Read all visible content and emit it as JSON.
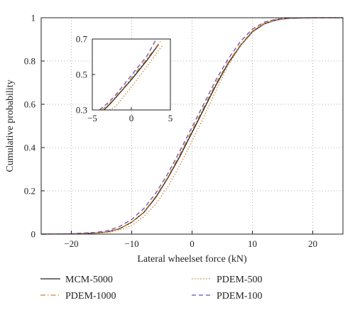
{
  "chart_data": {
    "type": "line",
    "title": "",
    "xlabel": "Lateral wheelset force (kN)",
    "ylabel": "Cumulative probability",
    "xlim": [
      -25,
      25
    ],
    "ylim": [
      0,
      1
    ],
    "xticks": [
      -20,
      -10,
      0,
      10,
      20
    ],
    "yticks": [
      0,
      0.2,
      0.4,
      0.6,
      0.8,
      1
    ],
    "xtick_labels": [
      "−20",
      "−10",
      "0",
      "10",
      "20"
    ],
    "ytick_labels": [
      "0",
      "0.2",
      "0.4",
      "0.6",
      "0.8",
      "1"
    ],
    "grid": true,
    "legend_position": "bottom",
    "series": [
      {
        "name": "MCM-5000",
        "color": "#222222",
        "dash": "solid",
        "x": [
          -25,
          -20,
          -16,
          -14,
          -12,
          -10,
          -8,
          -6,
          -4,
          -2,
          0,
          2,
          4,
          6,
          8,
          10,
          12,
          14,
          16,
          20,
          25
        ],
        "y": [
          0,
          0.001,
          0.005,
          0.01,
          0.025,
          0.055,
          0.1,
          0.17,
          0.26,
          0.36,
          0.47,
          0.58,
          0.69,
          0.79,
          0.87,
          0.935,
          0.972,
          0.99,
          0.997,
          1.0,
          1.0
        ]
      },
      {
        "name": "PDEM-500",
        "color": "#d9822b",
        "dash": "dotted",
        "x": [
          -25,
          -20,
          -16,
          -14,
          -12,
          -10,
          -8,
          -6,
          -4,
          -2,
          0,
          2,
          4,
          6,
          8,
          10,
          12,
          14,
          16,
          20,
          25
        ],
        "y": [
          0,
          0.001,
          0.004,
          0.008,
          0.018,
          0.04,
          0.08,
          0.14,
          0.22,
          0.32,
          0.43,
          0.545,
          0.665,
          0.78,
          0.87,
          0.94,
          0.978,
          0.994,
          0.999,
          1.0,
          1.0
        ]
      },
      {
        "name": "PDEM-1000",
        "color": "#d9822b",
        "dash": "dashdot",
        "x": [
          -25,
          -20,
          -16,
          -14,
          -12,
          -10,
          -8,
          -6,
          -4,
          -2,
          0,
          2,
          4,
          6,
          8,
          10,
          12,
          14,
          16,
          20,
          25
        ],
        "y": [
          0,
          0.001,
          0.005,
          0.011,
          0.026,
          0.056,
          0.102,
          0.175,
          0.265,
          0.37,
          0.48,
          0.59,
          0.7,
          0.795,
          0.875,
          0.938,
          0.974,
          0.99,
          0.997,
          1.0,
          1.0
        ]
      },
      {
        "name": "PDEM-100",
        "color": "#6b4fb3",
        "dash": "dashed",
        "x": [
          -25,
          -20,
          -16,
          -14,
          -12,
          -10,
          -8,
          -6,
          -4,
          -2,
          0,
          2,
          4,
          6,
          8,
          10,
          12,
          14,
          16,
          20,
          25
        ],
        "y": [
          0,
          0.002,
          0.008,
          0.016,
          0.035,
          0.068,
          0.118,
          0.19,
          0.28,
          0.385,
          0.495,
          0.605,
          0.715,
          0.81,
          0.89,
          0.948,
          0.98,
          0.993,
          0.998,
          1.0,
          1.0
        ]
      }
    ],
    "inset": {
      "xlim": [
        -5,
        5
      ],
      "ylim": [
        0.3,
        0.7
      ],
      "xticks": [
        -5,
        0,
        5
      ],
      "yticks": [
        0.3,
        0.5,
        0.7
      ],
      "xtick_labels": [
        "−5",
        "0",
        "5"
      ],
      "ytick_labels": [
        "0.3",
        "0.5",
        "0.7"
      ],
      "series": [
        {
          "name": "MCM-5000",
          "x": [
            -3.5,
            -2.5,
            -1,
            0,
            1,
            2,
            3,
            3.5
          ],
          "y": [
            0.3,
            0.345,
            0.42,
            0.47,
            0.525,
            0.58,
            0.64,
            0.67
          ]
        },
        {
          "name": "PDEM-500",
          "x": [
            -2.8,
            -2,
            -1,
            0,
            1,
            2,
            3,
            4
          ],
          "y": [
            0.3,
            0.32,
            0.375,
            0.43,
            0.487,
            0.545,
            0.605,
            0.665
          ]
        },
        {
          "name": "PDEM-1000",
          "x": [
            -3.8,
            -2.5,
            -1,
            0,
            1,
            2,
            3,
            3.7
          ],
          "y": [
            0.3,
            0.35,
            0.425,
            0.48,
            0.535,
            0.59,
            0.645,
            0.685
          ]
        },
        {
          "name": "PDEM-100",
          "x": [
            -4.1,
            -3,
            -2,
            -1,
            0,
            1,
            2,
            3.2
          ],
          "y": [
            0.3,
            0.34,
            0.385,
            0.44,
            0.495,
            0.55,
            0.605,
            0.7
          ]
        }
      ]
    }
  }
}
